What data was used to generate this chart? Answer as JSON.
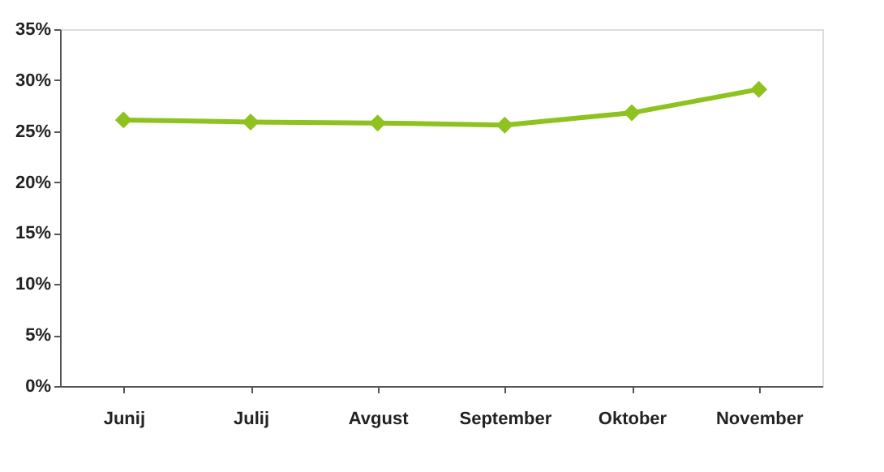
{
  "chart_data": {
    "type": "line",
    "categories": [
      "Junij",
      "Julij",
      "Avgust",
      "September",
      "Oktober",
      "November"
    ],
    "series": [
      {
        "color": "#8dc21f",
        "values": [
          26.1,
          25.9,
          25.8,
          25.6,
          26.8,
          29.1
        ]
      }
    ],
    "ylim": [
      0,
      35
    ],
    "yticks": [
      {
        "value": 0,
        "label": "0%"
      },
      {
        "value": 5,
        "label": "5%"
      },
      {
        "value": 10,
        "label": "10%"
      },
      {
        "value": 15,
        "label": "15%"
      },
      {
        "value": 20,
        "label": "20%"
      },
      {
        "value": 25,
        "label": "25%"
      },
      {
        "value": 30,
        "label": "30%"
      },
      {
        "value": 35,
        "label": "35%"
      }
    ],
    "marker": "diamond",
    "line_style": "solid",
    "grid": false,
    "legend": false
  }
}
